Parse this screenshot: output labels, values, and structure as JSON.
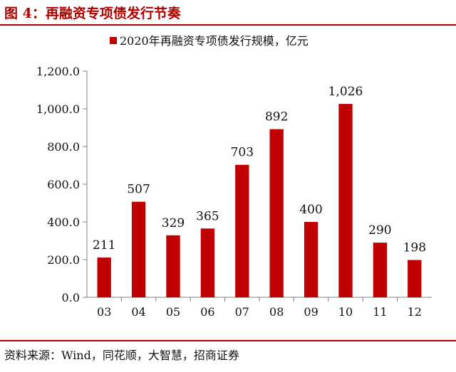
{
  "figure": {
    "title": "图 4：再融资专项债发行节奏",
    "source": "资料来源：Wind，同花顺，大智慧，招商证券"
  },
  "colors": {
    "accent": "#b00000",
    "bar": "#c00000",
    "axis": "#7f7f7f"
  },
  "chart_data": {
    "type": "bar",
    "title": "",
    "xlabel": "",
    "ylabel": "",
    "categories": [
      "03",
      "04",
      "05",
      "06",
      "07",
      "08",
      "09",
      "10",
      "11",
      "12"
    ],
    "series": [
      {
        "name": "2020年再融资专项债发行规模，亿元",
        "values": [
          211,
          507,
          329,
          365,
          703,
          892,
          400,
          1026,
          290,
          198
        ],
        "labels": [
          "211",
          "507",
          "329",
          "365",
          "703",
          "892",
          "400",
          "1,026",
          "290",
          "198"
        ]
      }
    ],
    "ylim": [
      0,
      1200
    ],
    "yticks": [
      0,
      200,
      400,
      600,
      800,
      1000,
      1200
    ],
    "ytick_labels": [
      "0.0",
      "200.0",
      "400.0",
      "600.0",
      "800.0",
      "1,000.0",
      "1,200.0"
    ],
    "grid": false,
    "legend_position": "top-center"
  }
}
